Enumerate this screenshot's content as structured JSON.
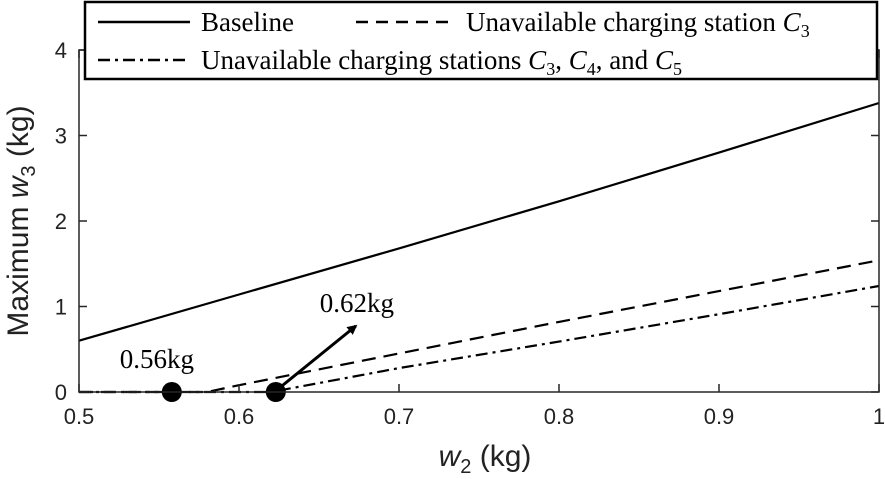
{
  "chart_data": {
    "type": "line",
    "title": "",
    "xlabel": "w_2 (kg)",
    "ylabel": "Maximum w_3 (kg)",
    "xlim": [
      0.5,
      1.0
    ],
    "ylim": [
      0,
      4
    ],
    "xticks": [
      0.5,
      0.6,
      0.7,
      0.8,
      0.9,
      1
    ],
    "xtick_labels": [
      "0.5",
      "0.6",
      "0.7",
      "0.8",
      "0.9",
      "1"
    ],
    "yticks": [
      0,
      1,
      2,
      3,
      4
    ],
    "ytick_labels": [
      "0",
      "1",
      "2",
      "3",
      "4"
    ],
    "grid": false,
    "legend": {
      "placement": "top",
      "entries": [
        {
          "series": 0,
          "label": "Baseline"
        },
        {
          "series": 1,
          "label": "Unavailable charging station C3"
        },
        {
          "series": 2,
          "label": "Unavailable charging stations C3, C4, and C5"
        }
      ]
    },
    "series": [
      {
        "name": "Baseline",
        "style": "solid",
        "x": [
          0.5,
          0.6,
          0.7,
          0.8,
          0.9,
          1.0
        ],
        "y": [
          0.6,
          1.14,
          1.68,
          2.23,
          2.8,
          3.38
        ]
      },
      {
        "name": "Unavailable charging station C3",
        "style": "dashed",
        "x": [
          0.5,
          0.56,
          0.58,
          0.6,
          0.7,
          0.8,
          0.9,
          1.0
        ],
        "y": [
          0.0,
          0.0,
          0.0,
          0.08,
          0.45,
          0.82,
          1.18,
          1.54
        ]
      },
      {
        "name": "Unavailable charging stations C3, C4, and C5",
        "style": "dashdot",
        "x": [
          0.5,
          0.62,
          0.7,
          0.8,
          0.9,
          1.0
        ],
        "y": [
          0.0,
          0.0,
          0.28,
          0.59,
          0.91,
          1.24
        ]
      }
    ],
    "markers": [
      {
        "x": 0.558,
        "y": 0.0,
        "label": "0.56kg"
      },
      {
        "x": 0.623,
        "y": 0.0,
        "label": "0.62kg"
      }
    ],
    "annotations": [
      {
        "text": "0.56kg",
        "marker": 0
      },
      {
        "text": "0.62kg",
        "marker": 1,
        "arrow": true
      }
    ]
  }
}
